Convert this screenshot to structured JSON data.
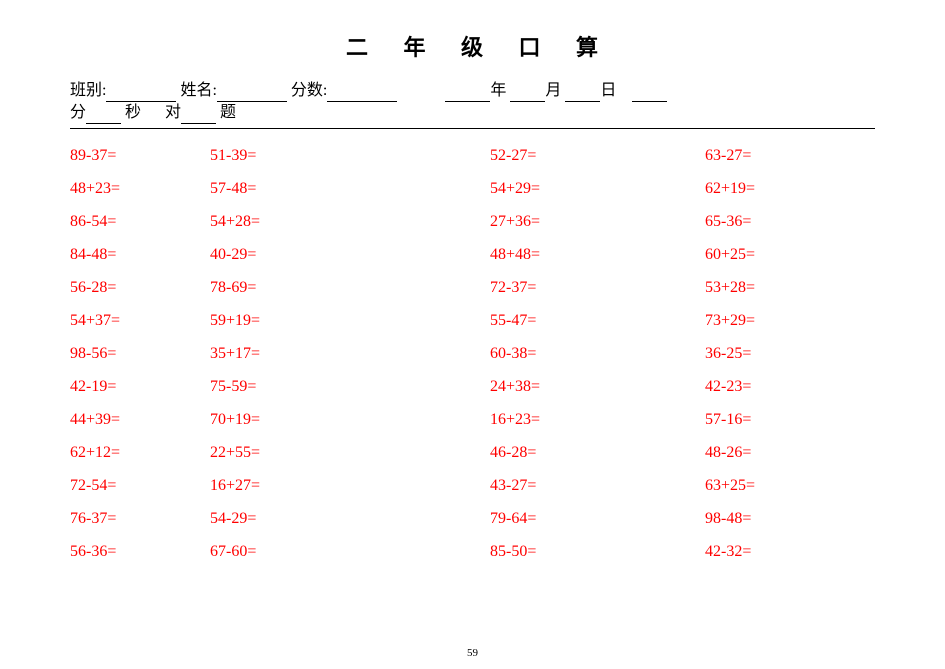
{
  "title_chars": [
    "二",
    "年",
    "级",
    "口",
    "算"
  ],
  "meta": {
    "class_label": "班别:",
    "name_label": "姓名:",
    "score_label": "分数:",
    "year_label": "年",
    "month_label": "月",
    "day_label": "日",
    "minute_label": "分",
    "second_label": "秒",
    "correct_label": "对",
    "ti_label": "题"
  },
  "table": {
    "type": "table",
    "columns": [
      "c1",
      "c2",
      "c3",
      "c4"
    ],
    "text_color": "#ff0000",
    "font_family": "Times New Roman",
    "font_size": 16,
    "rows": [
      [
        "89-37=",
        "51-39=",
        "52-27=",
        "63-27="
      ],
      [
        "48+23=",
        "57-48=",
        "54+29=",
        "62+19="
      ],
      [
        "86-54=",
        "54+28=",
        "27+36=",
        "65-36="
      ],
      [
        "84-48=",
        "40-29=",
        "48+48=",
        "60+25="
      ],
      [
        "56-28=",
        "78-69=",
        "72-37=",
        "53+28="
      ],
      [
        "54+37=",
        "59+19=",
        "55-47=",
        "73+29="
      ],
      [
        "98-56=",
        "35+17=",
        "60-38=",
        "36-25="
      ],
      [
        "42-19=",
        "75-59=",
        "24+38=",
        "42-23="
      ],
      [
        "44+39=",
        "70+19=",
        "16+23=",
        "57-16="
      ],
      [
        "62+12=",
        "22+55=",
        "46-28=",
        "48-26="
      ],
      [
        "72-54=",
        "16+27=",
        "43-27=",
        "63+25="
      ],
      [
        "76-37=",
        "54-29=",
        "79-64=",
        "98-48="
      ],
      [
        "56-36=",
        "67-60=",
        "85-50=",
        "42-32="
      ]
    ]
  },
  "page_number": "59",
  "colors": {
    "text": "#000000",
    "problem": "#ff0000",
    "background": "#ffffff",
    "rule": "#000000"
  }
}
